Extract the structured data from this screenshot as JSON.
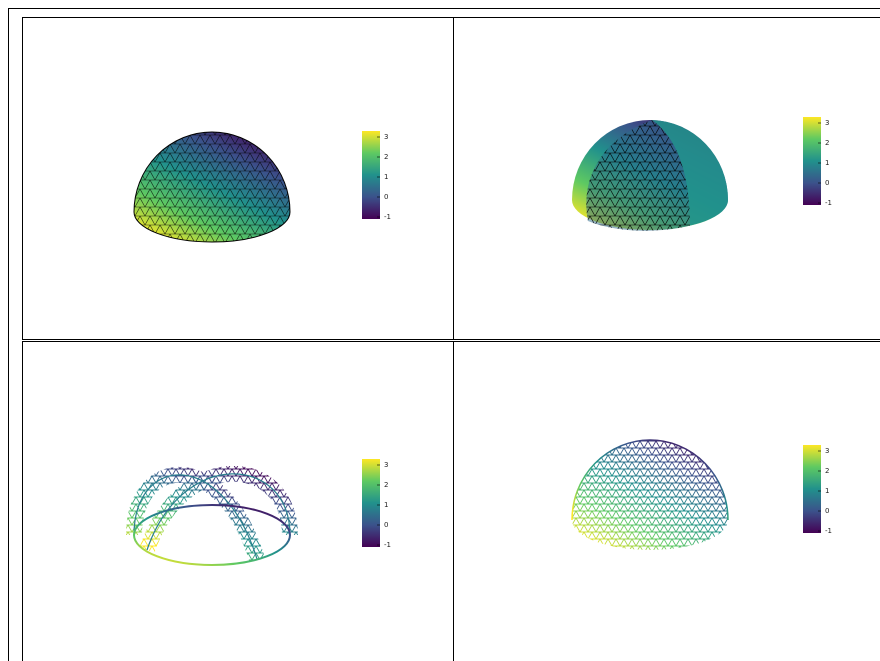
{
  "chart_data": [
    {
      "type": "surface",
      "style": "surface-edges",
      "clim": [
        -1.1,
        3.3
      ],
      "cticks": [
        3,
        2,
        1,
        0,
        -1
      ],
      "colormap": [
        "#440154",
        "#3b528b",
        "#21918c",
        "#5ec962",
        "#fde725"
      ]
    },
    {
      "type": "surface",
      "style": "sliced",
      "clim": [
        -1.1,
        3.3
      ],
      "cticks": [
        3,
        2,
        1,
        0,
        -1
      ],
      "colormap": [
        "#440154",
        "#3b528b",
        "#21918c",
        "#5ec962",
        "#fde725"
      ]
    },
    {
      "type": "surface",
      "style": "wireframe-sliced",
      "clim": [
        -1.1,
        3.3
      ],
      "cticks": [
        3,
        2,
        1,
        0,
        -1
      ],
      "colormap": [
        "#440154",
        "#3b528b",
        "#21918c",
        "#5ec962",
        "#fde725"
      ]
    },
    {
      "type": "surface",
      "style": "wireframe",
      "clim": [
        -1.1,
        3.3
      ],
      "cticks": [
        3,
        2,
        1,
        0,
        -1
      ],
      "colormap": [
        "#440154",
        "#3b528b",
        "#21918c",
        "#5ec962",
        "#fde725"
      ]
    }
  ]
}
